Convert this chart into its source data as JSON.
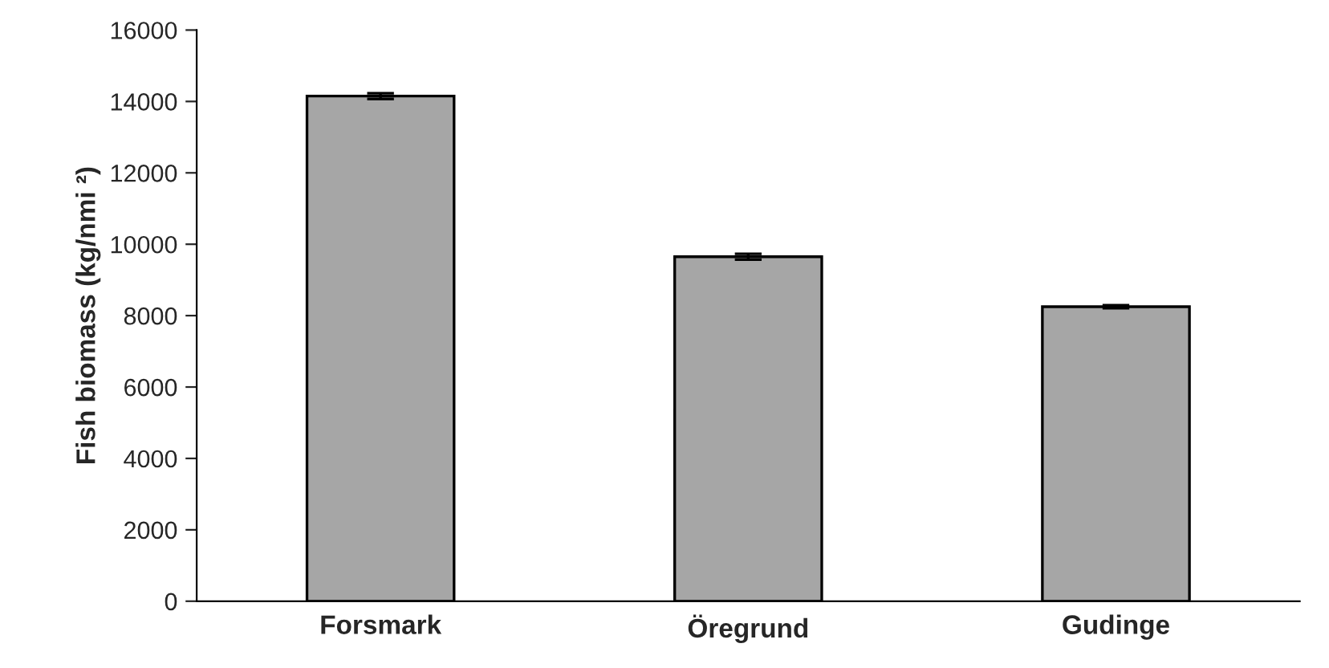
{
  "chart_data": {
    "type": "bar",
    "ylabel": "Fish biomass (kg/nmi ²)",
    "categories": [
      "Forsmark",
      "Öregrund",
      "Gudinge"
    ],
    "values": [
      14150,
      9650,
      8250
    ],
    "errors": [
      80,
      80,
      40
    ],
    "color": "#a6a6a6",
    "ylim": [
      0,
      16000
    ],
    "yticks": [
      0,
      2000,
      4000,
      6000,
      8000,
      10000,
      12000,
      14000,
      16000
    ],
    "grid": false
  }
}
